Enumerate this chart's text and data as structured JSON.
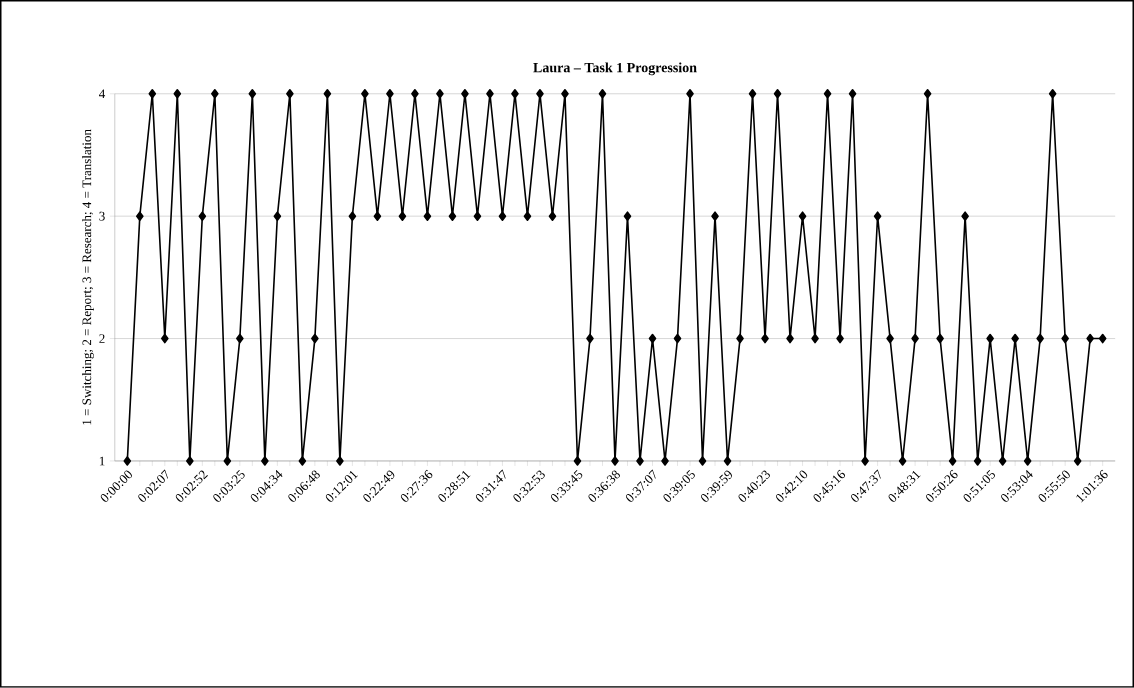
{
  "chart_data": {
    "type": "line",
    "title": "Laura – Task 1 Progression",
    "ylabel": "1 = Switching; 2 = Report; 3 = Research; 4 = Translation",
    "categories": [
      "0:00:00",
      null,
      null,
      "0:02:07",
      null,
      null,
      "0:02:52",
      null,
      null,
      "0:03:25",
      null,
      null,
      "0:04:34",
      null,
      null,
      "0:06:48",
      null,
      null,
      "0:12:01",
      null,
      null,
      "0:22:49",
      null,
      null,
      "0:27:36",
      null,
      null,
      "0:28:51",
      null,
      null,
      "0:31:47",
      null,
      null,
      "0:32:53",
      null,
      null,
      "0:33:45",
      null,
      null,
      "0:36:38",
      null,
      null,
      "0:37:07",
      null,
      null,
      "0:39:05",
      null,
      null,
      "0:39:59",
      null,
      null,
      "0:40:23",
      null,
      null,
      "0:42:10",
      null,
      null,
      "0:45:16",
      null,
      null,
      "0:47:37",
      null,
      null,
      "0:48:31",
      null,
      null,
      "0:50:26",
      null,
      null,
      "0:51:05",
      null,
      null,
      "0:53:04",
      null,
      null,
      "0:55:50",
      null,
      null,
      "1:01:36"
    ],
    "series": [
      {
        "color": "#000000",
        "values": [
          1,
          3,
          4,
          2,
          4,
          1,
          3,
          4,
          1,
          2,
          4,
          1,
          3,
          4,
          1,
          2,
          4,
          1,
          3,
          4,
          3,
          4,
          3,
          4,
          3,
          4,
          3,
          4,
          3,
          4,
          3,
          4,
          3,
          4,
          3,
          4,
          1,
          2,
          4,
          1,
          3,
          1,
          2,
          1,
          2,
          4,
          1,
          3,
          1,
          2,
          4,
          2,
          4,
          2,
          3,
          2,
          4,
          2,
          4,
          1,
          3,
          2,
          1,
          2,
          4,
          2,
          1,
          3,
          1,
          2,
          1,
          2,
          1,
          2,
          4,
          2,
          1,
          2,
          2
        ]
      }
    ],
    "ylim": [
      1,
      4
    ],
    "yticks": [
      1,
      2,
      3,
      4
    ],
    "grid": "y",
    "marker": "diamond",
    "line_style": "solid"
  }
}
